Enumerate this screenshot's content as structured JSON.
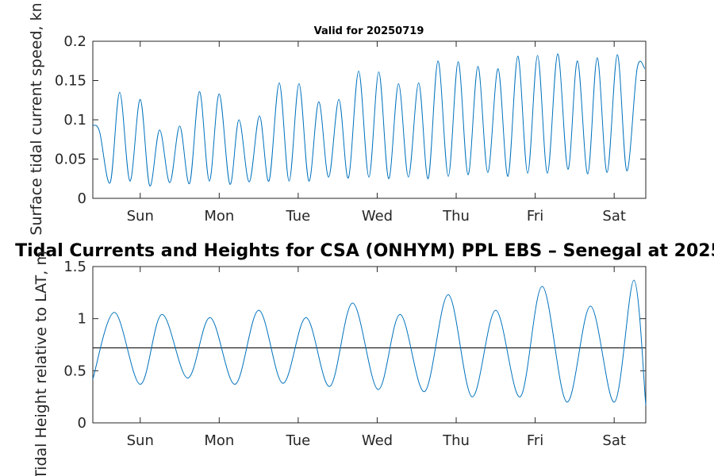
{
  "chart_data": [
    {
      "type": "line",
      "title": "Valid for 20250719",
      "ylabel": "Surface tidal current speed, kn",
      "xlabel": "",
      "x_tick_labels": [
        "Sun",
        "Mon",
        "Tue",
        "Wed",
        "Thu",
        "Fri",
        "Sat"
      ],
      "x": [
        0,
        0.17,
        0.44,
        0.68,
        0.94,
        1.2,
        1.44,
        1.69,
        1.95,
        2.2,
        2.45,
        2.7,
        2.95,
        3.2,
        3.47,
        3.7,
        3.96,
        4.22,
        4.46,
        4.72,
        4.97,
        5.22,
        5.47,
        5.72,
        5.97,
        6.23,
        6.47,
        6.73,
        6.99,
        7.24,
        7.49,
        7.74,
        7.99,
        8.25,
        8.49,
        8.74,
        9.0,
        9.25,
        9.5,
        9.75,
        10.0,
        10.26,
        10.51,
        10.76,
        11.01,
        11.26,
        11.51,
        11.77,
        12.03,
        12.27,
        12.53,
        12.77,
        13.02,
        13.28,
        13.52,
        13.78,
        13.98
      ],
      "y": [
        0.093,
        0.085,
        0.02,
        0.135,
        0.022,
        0.126,
        0.016,
        0.087,
        0.02,
        0.092,
        0.019,
        0.136,
        0.022,
        0.133,
        0.018,
        0.1,
        0.021,
        0.105,
        0.022,
        0.147,
        0.022,
        0.146,
        0.022,
        0.123,
        0.027,
        0.126,
        0.026,
        0.162,
        0.027,
        0.161,
        0.025,
        0.146,
        0.027,
        0.147,
        0.025,
        0.175,
        0.028,
        0.174,
        0.03,
        0.168,
        0.033,
        0.165,
        0.028,
        0.181,
        0.032,
        0.182,
        0.032,
        0.184,
        0.037,
        0.175,
        0.031,
        0.179,
        0.033,
        0.183,
        0.035,
        0.165,
        0.165
      ],
      "xlim": [
        0,
        14
      ],
      "ylim": [
        0,
        0.2
      ],
      "yticks": [
        0,
        0.05,
        0.1,
        0.15,
        0.2
      ],
      "ytick_labels": [
        "0",
        "0.05",
        "0.1",
        "0.15",
        "0.2"
      ],
      "grid": false,
      "color": "#0072BD"
    },
    {
      "type": "line",
      "title": "Tidal Currents and Heights for CSA (ONHYM) PPL EBS  – Senegal at 2025",
      "ylabel": "Tidal Height relative to LAT, m",
      "xlabel": "",
      "x_tick_labels": [
        "Sun",
        "Mon",
        "Tue",
        "Wed",
        "Thu",
        "Fri",
        "Sat"
      ],
      "x": [
        0,
        0.55,
        1.2,
        1.75,
        2.4,
        2.97,
        3.6,
        4.2,
        4.81,
        5.4,
        6.0,
        6.58,
        7.22,
        7.78,
        8.4,
        9.0,
        9.6,
        10.2,
        10.82,
        11.38,
        12.0,
        12.6,
        13.21,
        13.7,
        14.0
      ],
      "y": [
        0.42,
        1.06,
        0.37,
        1.04,
        0.43,
        1.01,
        0.37,
        1.08,
        0.38,
        1.01,
        0.35,
        1.15,
        0.32,
        1.04,
        0.3,
        1.23,
        0.25,
        1.08,
        0.25,
        1.31,
        0.2,
        1.12,
        0.2,
        1.37,
        0.17
      ],
      "xlim": [
        0,
        14
      ],
      "ylim": [
        0,
        1.5
      ],
      "yticks": [
        0,
        0.5,
        1,
        1.5
      ],
      "ytick_labels": [
        "0",
        "0.5",
        "1",
        "1.5"
      ],
      "reference_line": 0.72,
      "grid": false,
      "color": "#0072BD"
    }
  ]
}
